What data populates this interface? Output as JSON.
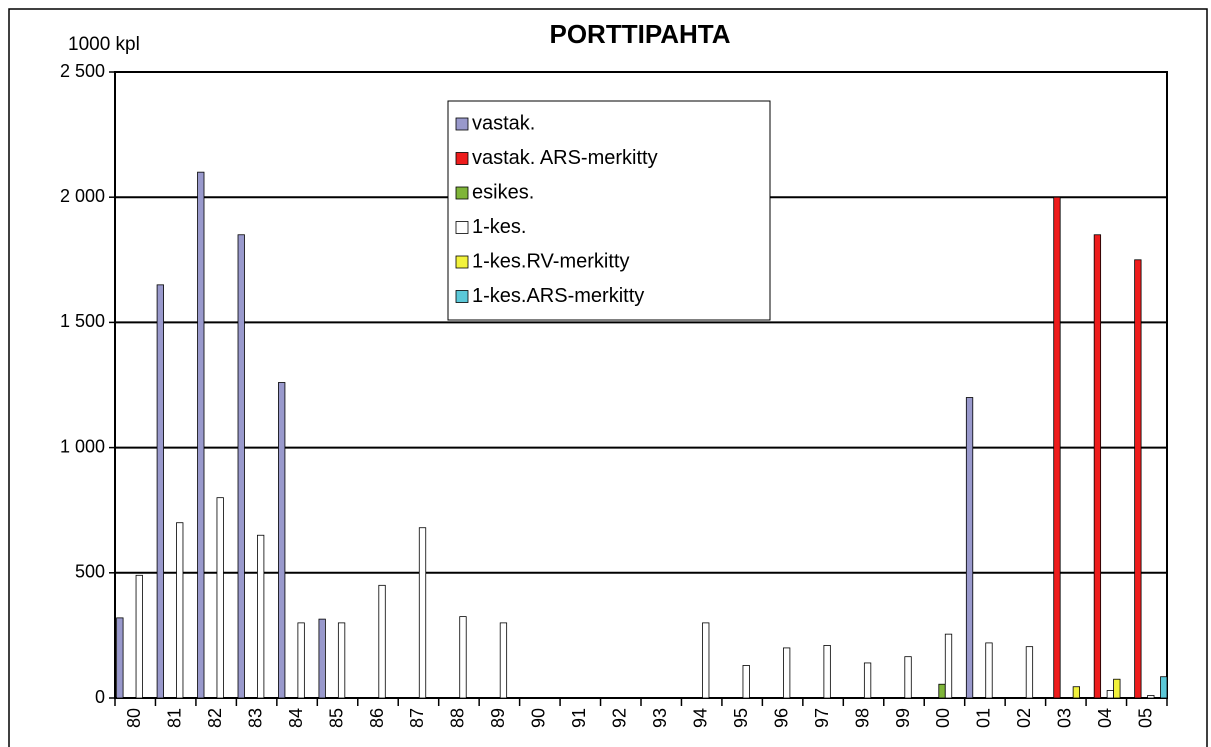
{
  "chart_data": {
    "type": "bar",
    "title": "PORTTIPAHTA",
    "y_label": "1000 kpl",
    "categories": [
      "80",
      "81",
      "82",
      "83",
      "84",
      "85",
      "86",
      "87",
      "88",
      "89",
      "90",
      "91",
      "92",
      "93",
      "94",
      "95",
      "96",
      "97",
      "98",
      "99",
      "00",
      "01",
      "02",
      "03",
      "04",
      "05"
    ],
    "series": [
      {
        "name": "vastak.",
        "color": "#9999cc",
        "values": [
          320,
          1650,
          2100,
          1850,
          1260,
          315,
          null,
          null,
          null,
          null,
          null,
          null,
          null,
          null,
          null,
          null,
          null,
          null,
          null,
          null,
          null,
          1200,
          null,
          null,
          null,
          null
        ]
      },
      {
        "name": "vastak. ARS-merkitty",
        "color": "#ee1c1c",
        "values": [
          null,
          null,
          null,
          null,
          null,
          null,
          null,
          null,
          null,
          null,
          null,
          null,
          null,
          null,
          null,
          null,
          null,
          null,
          null,
          null,
          null,
          null,
          null,
          2000,
          1850,
          1750
        ]
      },
      {
        "name": "esikes.",
        "color": "#7fb539",
        "values": [
          null,
          null,
          null,
          null,
          null,
          null,
          null,
          null,
          null,
          null,
          null,
          null,
          null,
          null,
          null,
          null,
          null,
          null,
          null,
          null,
          55,
          null,
          null,
          null,
          null,
          null
        ]
      },
      {
        "name": "1-kes.",
        "color": "#ffffff",
        "values": [
          490,
          700,
          800,
          650,
          300,
          300,
          450,
          680,
          325,
          300,
          null,
          null,
          null,
          null,
          300,
          130,
          200,
          210,
          140,
          165,
          255,
          220,
          205,
          null,
          30,
          10
        ]
      },
      {
        "name": "1-kes.RV-merkitty",
        "color": "#f2f23c",
        "values": [
          null,
          null,
          null,
          null,
          null,
          null,
          null,
          null,
          null,
          null,
          null,
          null,
          null,
          null,
          null,
          null,
          null,
          null,
          null,
          null,
          null,
          null,
          null,
          45,
          75,
          null
        ]
      },
      {
        "name": "1-kes.ARS-merkitty",
        "color": "#5bc8d8",
        "values": [
          null,
          null,
          null,
          null,
          null,
          null,
          null,
          null,
          null,
          null,
          null,
          null,
          null,
          null,
          null,
          null,
          null,
          null,
          null,
          null,
          null,
          null,
          null,
          null,
          null,
          85
        ]
      }
    ],
    "ylim": [
      0,
      2500
    ],
    "yticks": [
      0,
      500,
      {
        "value": 1000,
        "label": "1 000"
      },
      {
        "value": 1500,
        "label": "1 500"
      },
      {
        "value": 2000,
        "label": "2 000"
      },
      {
        "value": 2500,
        "label": "2 500"
      }
    ],
    "grid": true,
    "legend": "top"
  }
}
